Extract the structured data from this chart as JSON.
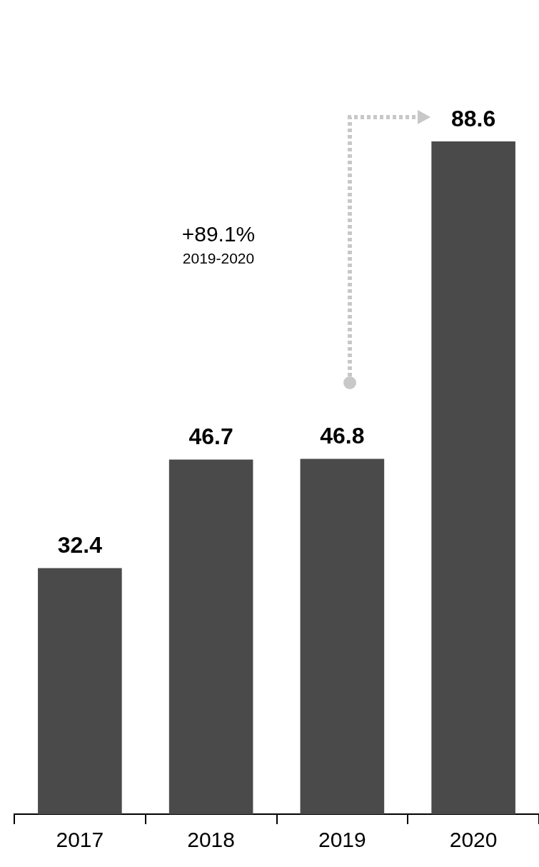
{
  "chart_data": {
    "type": "bar",
    "categories": [
      "2017",
      "2018",
      "2019",
      "2020"
    ],
    "values": [
      32.4,
      46.7,
      46.8,
      88.6
    ],
    "color": "#4a4a4a",
    "data_labels": true,
    "legend": false,
    "grid": false,
    "tick_labels": "x",
    "annotations": [
      "+89.1%",
      "2019-2020"
    ]
  }
}
